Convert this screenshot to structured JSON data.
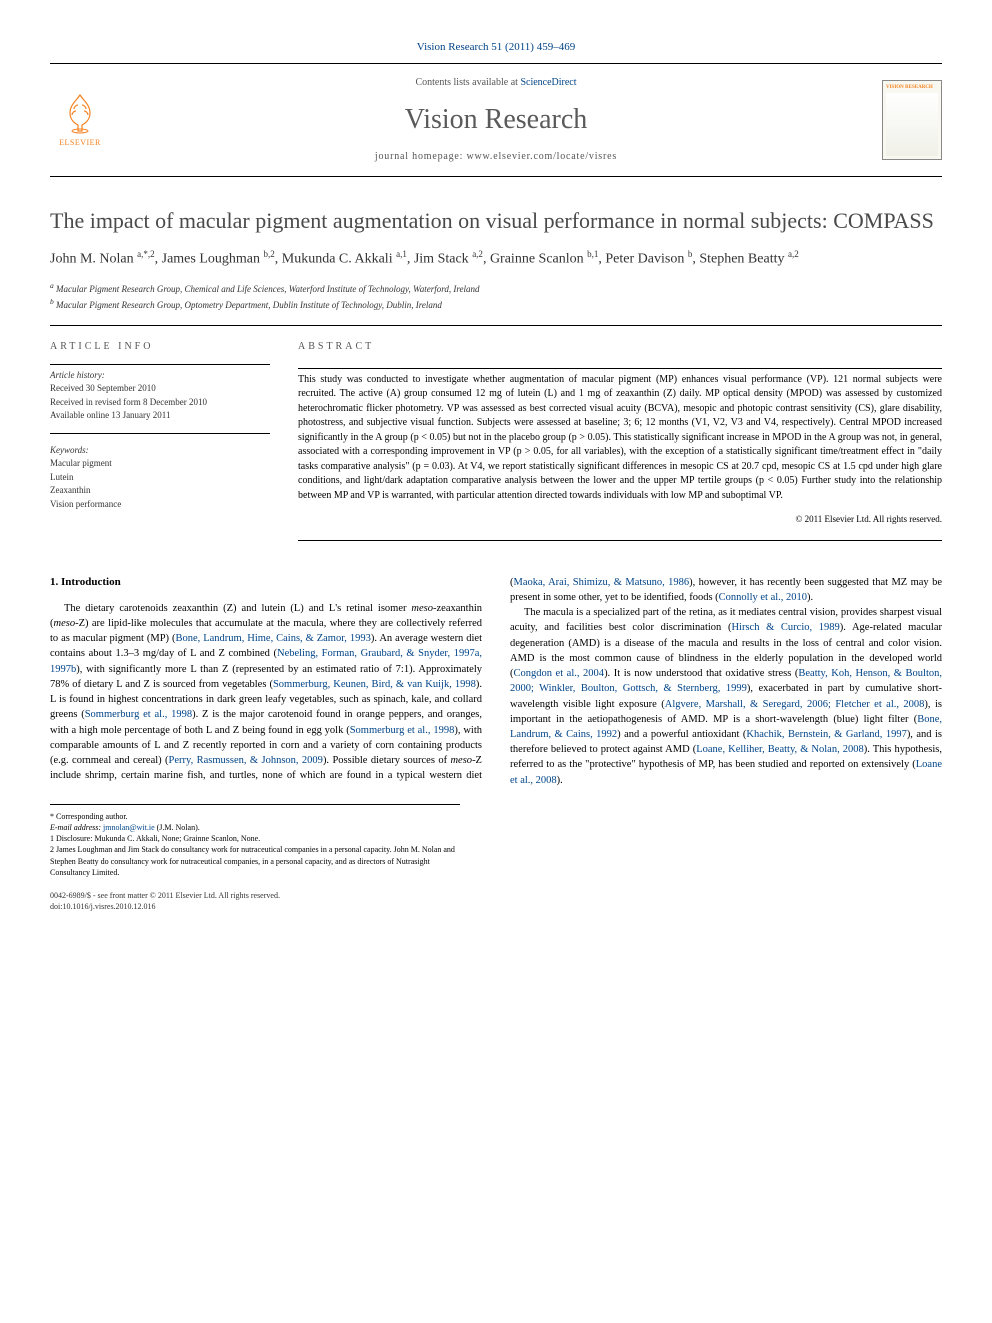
{
  "header": {
    "citation_prefix": "Vision Research 51 (2011) 459–469",
    "contents_text": "Contents lists available at ",
    "contents_link": "ScienceDirect",
    "journal_name": "Vision Research",
    "homepage_text": "journal homepage: www.elsevier.com/locate/visres",
    "elsevier_label": "ELSEVIER",
    "cover_label": "VISION RESEARCH"
  },
  "title": "The impact of macular pigment augmentation on visual performance in normal subjects: COMPASS",
  "authors_html": "John M. Nolan <sup>a,*,2</sup>, James Loughman <sup>b,2</sup>, Mukunda C. Akkali <sup>a,1</sup>, Jim Stack <sup>a,2</sup>, Grainne Scanlon <sup>b,1</sup>, Peter Davison <sup>b</sup>, Stephen Beatty <sup>a,2</sup>",
  "affiliations": {
    "a": "Macular Pigment Research Group, Chemical and Life Sciences, Waterford Institute of Technology, Waterford, Ireland",
    "b": "Macular Pigment Research Group, Optometry Department, Dublin Institute of Technology, Dublin, Ireland"
  },
  "article_info": {
    "heading": "ARTICLE INFO",
    "history_label": "Article history:",
    "received": "Received 30 September 2010",
    "revised": "Received in revised form 8 December 2010",
    "online": "Available online 13 January 2011",
    "keywords_label": "Keywords:",
    "keywords": [
      "Macular pigment",
      "Lutein",
      "Zeaxanthin",
      "Vision performance"
    ]
  },
  "abstract": {
    "heading": "ABSTRACT",
    "text": "This study was conducted to investigate whether augmentation of macular pigment (MP) enhances visual performance (VP). 121 normal subjects were recruited. The active (A) group consumed 12 mg of lutein (L) and 1 mg of zeaxanthin (Z) daily. MP optical density (MPOD) was assessed by customized heterochromatic flicker photometry. VP was assessed as best corrected visual acuity (BCVA), mesopic and photopic contrast sensitivity (CS), glare disability, photostress, and subjective visual function. Subjects were assessed at baseline; 3; 6; 12 months (V1, V2, V3 and V4, respectively). Central MPOD increased significantly in the A group (p < 0.05) but not in the placebo group (p > 0.05). This statistically significant increase in MPOD in the A group was not, in general, associated with a corresponding improvement in VP (p > 0.05, for all variables), with the exception of a statistically significant time/treatment effect in \"daily tasks comparative analysis\" (p = 0.03). At V4, we report statistically significant differences in mesopic CS at 20.7 cpd, mesopic CS at 1.5 cpd under high glare conditions, and light/dark adaptation comparative analysis between the lower and the upper MP tertile groups (p < 0.05) Further study into the relationship between MP and VP is warranted, with particular attention directed towards individuals with low MP and suboptimal VP.",
    "copyright": "© 2011 Elsevier Ltd. All rights reserved."
  },
  "body": {
    "heading": "1. Introduction",
    "para1_pre": "The dietary carotenoids zeaxanthin (Z) and lutein (L) and L's retinal isomer ",
    "para1_meso1": "meso",
    "para1_mid1": "-zeaxanthin (",
    "para1_meso2": "meso",
    "para1_mid2": "-Z) are lipid-like molecules that accumulate at the macula, where they are collectively referred to as macular pigment (MP) (",
    "para1_ref1": "Bone, Landrum, Hime, Cains, & Zamor, 1993",
    "para1_mid3": "). An average western diet contains about 1.3–3 mg/day of L and Z combined (",
    "para1_ref2": "Nebeling, Forman, Graubard, & Snyder, 1997a, 1997b",
    "para1_mid4": "), with significantly more L than Z (represented by an estimated ratio of 7:1). Approximately 78% of dietary L and Z is sourced from vegetables (",
    "para1_ref3": "Sommerburg, Keunen, Bird, & van Kuijk, 1998",
    "para1_mid5": "). L is found in highest concentrations in dark green leafy vegetables, such as spinach, kale, and collard greens (",
    "para1_ref4": "Sommerburg et al., 1998",
    "para1_mid6": "). Z is the major carotenoid found in orange peppers, and oranges, with a high mole percentage of both L and Z being found in egg yolk (",
    "para1_ref5": "Sommerburg et al., 1998",
    "para1_mid7": "), with comparable amounts of L and Z recently reported in corn and a variety of corn containing products (e.g. cornmeal and cereal) (",
    "para1_ref6": "Perry, Rasmussen, & Johnson, 2009",
    "para1_mid8": "). Possible dietary sources of ",
    "para1_meso3": "meso",
    "para1_mid9": "-Z include shrimp, certain marine fish, and turtles, none of which are found in a typical western diet (",
    "para1_ref7": "Maoka, Arai, Shimizu, & Matsuno, 1986",
    "para1_mid10": "), however, it has recently been suggested that MZ may be present in some other, yet to be identified, foods (",
    "para1_ref8": "Connolly et al., 2010",
    "para1_end": ").",
    "para2_pre": "The macula is a specialized part of the retina, as it mediates central vision, provides sharpest visual acuity, and facilities best color discrimination (",
    "para2_ref1": "Hirsch & Curcio, 1989",
    "para2_mid1": "). Age-related macular degeneration (AMD) is a disease of the macula and results in the loss of central and color vision. AMD is the most common cause of blindness in the elderly population in the developed world (",
    "para2_ref2": "Congdon et al., 2004",
    "para2_mid2": "). It is now understood that oxidative stress (",
    "para2_ref3": "Beatty, Koh, Henson, & Boulton, 2000; Winkler, Boulton, Gottsch, & Sternberg, 1999",
    "para2_mid3": "), exacerbated in part by cumulative short-wavelength visible light exposure (",
    "para2_ref4": "Algvere, Marshall, & Seregard, 2006; Fletcher et al., 2008",
    "para2_mid4": "), is important in the aetiopathogenesis of AMD. MP is a short-wavelength (blue) light filter (",
    "para2_ref5": "Bone, Landrum, & Cains, 1992",
    "para2_mid5": ") and a powerful antioxidant (",
    "para2_ref6": "Khachik, Bernstein, & Garland, 1997",
    "para2_mid6": "), and is therefore believed to protect against AMD (",
    "para2_ref7": "Loane, Kelliher, Beatty, & Nolan, 2008",
    "para2_mid7": "). This hypothesis, referred to as the \"protective\" hypothesis of MP, has been studied and reported on extensively (",
    "para2_ref8": "Loane et al., 2008",
    "para2_end": ")."
  },
  "footnotes": {
    "corr_label": "* Corresponding author.",
    "email_label": "E-mail address: ",
    "email": "jmnolan@wit.ie",
    "email_suffix": " (J.M. Nolan).",
    "fn1": "1  Disclosure: Mukunda C. Akkali, None; Grainne Scanlon, None.",
    "fn2": "2  James Loughman and Jim Stack do consultancy work for nutraceutical companies in a personal capacity. John M. Nolan and Stephen Beatty do consultancy work for nutraceutical companies, in a personal capacity, and as directors of Nutrasight Consultancy Limited."
  },
  "footer": {
    "left1": "0042-6989/$ - see front matter © 2011 Elsevier Ltd. All rights reserved.",
    "left2": "doi:10.1016/j.visres.2010.12.016"
  },
  "colors": {
    "link": "#004488",
    "orange": "#f58220",
    "gray_text": "#5a5a5a"
  }
}
